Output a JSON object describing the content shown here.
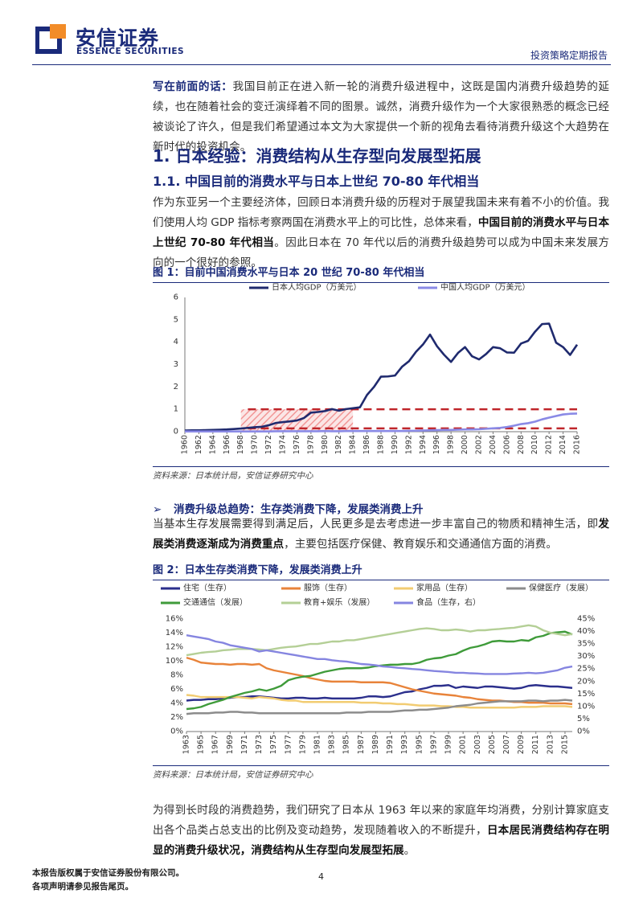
{
  "header": {
    "company_cn": "安信证券",
    "company_en": "ESSENCE SECURITIES",
    "report_type": "投资策略定期报告"
  },
  "intro": {
    "lead": "写在前面的话：",
    "text": "我国目前正在进入新一轮的消费升级进程中，这既是国内消费升级趋势的延续，也在随着社会的变迁演绎着不同的图景。诚然，消费升级作为一个大家很熟悉的概念已经被谈论了许久，但是我们希望通过本文为大家提供一个新的视角去看待消费升级这个大趋势在新时代的投资机会。"
  },
  "section1": {
    "title": "1. 日本经验：消费结构从生存型向发展型拓展",
    "sub_title": "1.1. 中国目前的消费水平与日本上世纪 70-80 年代相当",
    "para_a": "作为东亚另一个主要经济体，回顾日本消费升级的历程对于展望我国未来有着不小的价值。我们使用人均 GDP 指标考察两国在消费水平上的可比性，总体来看，",
    "para_bold": "中国目前的消费水平与日本上世纪 70-80 年代相当",
    "para_b": "。因此日本在 70 年代以后的消费升级趋势可以成为中国未来发展方向的一个很好的参照。"
  },
  "figure1": {
    "title": "图 1：目前中国消费水平与日本 20 世纪 70-80 年代相当",
    "source": "资料来源：日本统计局，安信证券研究中心"
  },
  "bullet": {
    "arrow": "➢",
    "title": "消费升级总趋势：生存类消费下降，发展类消费上升"
  },
  "para2": {
    "a": "当基本生存发展需要得到满足后，人民更多是去考虑进一步丰富自己的物质和精神生活，即",
    "bold": "发展类消费逐渐成为消费重点",
    "b": "，主要包括医疗保健、教育娱乐和交通通信方面的消费。"
  },
  "figure2": {
    "title": "图 2：日本生存类消费下降，发展类消费上升",
    "source": "资料来源：日本统计局，安信证券研究中心"
  },
  "para3": {
    "a": "为得到长时段的消费趋势，我们研究了日本从 1963 年以来的家庭年均消费，分别计算家庭支出各个品类占总支出的比例及变动趋势，发现随着收入的不断提升，",
    "bold": "日本居民消费结构存在明显的消费升级状况，消费结构从生存型向发展型拓展",
    "b": "。"
  },
  "footer": {
    "line1": "本报告版权属于安信证券股份有限公司。",
    "line2": "各项声明请参见报告尾页。",
    "page": "4"
  },
  "chart_data": [
    {
      "type": "line",
      "x": [
        1960,
        1961,
        1962,
        1963,
        1964,
        1965,
        1966,
        1967,
        1968,
        1969,
        1970,
        1971,
        1972,
        1973,
        1974,
        1975,
        1976,
        1977,
        1978,
        1979,
        1980,
        1981,
        1982,
        1983,
        1984,
        1985,
        1986,
        1987,
        1988,
        1989,
        1990,
        1991,
        1992,
        1993,
        1994,
        1995,
        1996,
        1997,
        1998,
        1999,
        2000,
        2001,
        2002,
        2003,
        2004,
        2005,
        2006,
        2007,
        2008,
        2009,
        2010,
        2011,
        2012,
        2013,
        2014,
        2015,
        2016
      ],
      "x_ticks": [
        "1960",
        "1962",
        "1964",
        "1966",
        "1968",
        "1970",
        "1972",
        "1974",
        "1976",
        "1978",
        "1980",
        "1982",
        "1984",
        "1986",
        "1988",
        "1990",
        "1992",
        "1994",
        "1996",
        "1998",
        "2000",
        "2002",
        "2004",
        "2006",
        "2008",
        "2010",
        "2012",
        "2014",
        "2016"
      ],
      "series": [
        {
          "name": "日本人均GDP（万美元）",
          "color": "#1f2a6e",
          "values": [
            0.05,
            0.06,
            0.06,
            0.07,
            0.08,
            0.09,
            0.1,
            0.12,
            0.14,
            0.17,
            0.2,
            0.22,
            0.29,
            0.39,
            0.43,
            0.46,
            0.5,
            0.61,
            0.85,
            0.88,
            0.92,
            1.01,
            0.94,
            1.01,
            1.05,
            1.09,
            1.64,
            2.0,
            2.46,
            2.47,
            2.51,
            2.9,
            3.15,
            3.57,
            3.9,
            4.34,
            3.82,
            3.44,
            3.12,
            3.52,
            3.78,
            3.37,
            3.23,
            3.47,
            3.78,
            3.73,
            3.54,
            3.53,
            3.94,
            4.06,
            4.47,
            4.81,
            4.83,
            3.98,
            3.78,
            3.43,
            3.89
          ]
        },
        {
          "name": "中国人均GDP（万美元）",
          "color": "#8a8ae6",
          "values": [
            0.01,
            0.01,
            0.01,
            0.01,
            0.01,
            0.01,
            0.01,
            0.01,
            0.01,
            0.01,
            0.01,
            0.01,
            0.01,
            0.02,
            0.02,
            0.02,
            0.02,
            0.02,
            0.02,
            0.02,
            0.03,
            0.02,
            0.02,
            0.03,
            0.03,
            0.03,
            0.03,
            0.03,
            0.03,
            0.03,
            0.03,
            0.03,
            0.04,
            0.04,
            0.05,
            0.06,
            0.07,
            0.08,
            0.08,
            0.09,
            0.1,
            0.1,
            0.11,
            0.13,
            0.15,
            0.17,
            0.21,
            0.27,
            0.34,
            0.38,
            0.45,
            0.55,
            0.63,
            0.7,
            0.77,
            0.8,
            0.81
          ]
        }
      ],
      "reference_lines": [
        1.0,
        0.15
      ],
      "highlight_range": [
        1968,
        1984
      ],
      "ylim": [
        0,
        6
      ],
      "y_ticks": [
        "0",
        "1",
        "2",
        "3",
        "4",
        "5",
        "6"
      ],
      "legend": "top"
    },
    {
      "type": "line",
      "x": [
        1963,
        1964,
        1965,
        1966,
        1967,
        1968,
        1969,
        1970,
        1971,
        1972,
        1973,
        1974,
        1975,
        1976,
        1977,
        1978,
        1979,
        1980,
        1981,
        1982,
        1983,
        1984,
        1985,
        1986,
        1987,
        1988,
        1989,
        1990,
        1991,
        1992,
        1993,
        1994,
        1995,
        1996,
        1997,
        1998,
        1999,
        2000,
        2001,
        2002,
        2003,
        2004,
        2005,
        2006,
        2007,
        2008,
        2009,
        2010,
        2011,
        2012,
        2013,
        2014,
        2015,
        2016
      ],
      "x_ticks": [
        "1963",
        "1965",
        "1967",
        "1969",
        "1971",
        "1973",
        "1975",
        "1977",
        "1979",
        "1981",
        "1983",
        "1985",
        "1987",
        "1989",
        "1991",
        "1993",
        "1995",
        "1997",
        "1999",
        "2001",
        "2003",
        "2005",
        "2007",
        "2009",
        "2011",
        "2013",
        "2015"
      ],
      "y_ticks_left": [
        "0%",
        "2%",
        "4%",
        "6%",
        "8%",
        "10%",
        "12%",
        "14%",
        "16%"
      ],
      "y_ticks_right": [
        "0%",
        "5%",
        "10%",
        "15%",
        "20%",
        "25%",
        "30%",
        "35%",
        "40%",
        "45%"
      ],
      "ylim_left": [
        0,
        16
      ],
      "ylim_right": [
        0,
        45
      ],
      "legend": "top",
      "series": [
        {
          "name": "住宅（生存）",
          "color": "#2b2f8c",
          "axis": "left",
          "values": [
            4.4,
            4.5,
            4.5,
            4.6,
            4.6,
            4.7,
            4.8,
            4.9,
            4.9,
            5.0,
            5.0,
            4.9,
            4.8,
            4.7,
            4.7,
            4.8,
            4.8,
            4.7,
            4.7,
            4.8,
            4.7,
            4.7,
            4.7,
            4.7,
            4.8,
            5.0,
            5.0,
            4.9,
            5.0,
            5.3,
            5.6,
            5.7,
            6.0,
            6.2,
            6.5,
            6.5,
            6.6,
            6.2,
            6.4,
            6.3,
            6.2,
            6.4,
            6.4,
            6.3,
            6.2,
            6.1,
            6.2,
            6.5,
            6.6,
            6.5,
            6.4,
            6.4,
            6.3,
            6.2
          ]
        },
        {
          "name": "服饰（生存）",
          "color": "#e8833a",
          "axis": "left",
          "values": [
            10.5,
            10.2,
            9.8,
            9.7,
            9.6,
            9.6,
            9.5,
            9.6,
            9.6,
            9.5,
            9.6,
            9.0,
            8.7,
            8.5,
            8.3,
            8.1,
            7.9,
            7.6,
            7.4,
            7.2,
            7.1,
            7.1,
            7.1,
            7.1,
            7.0,
            7.0,
            7.0,
            7.0,
            6.9,
            6.6,
            6.3,
            6.0,
            5.8,
            5.6,
            5.4,
            5.3,
            5.2,
            5.1,
            4.9,
            4.8,
            4.6,
            4.5,
            4.4,
            4.4,
            4.3,
            4.2,
            4.2,
            4.1,
            4.1,
            4.1,
            4.0,
            4.0,
            4.0,
            3.9
          ]
        },
        {
          "name": "家用品（生存）",
          "color": "#f2cc72",
          "axis": "left",
          "values": [
            5.2,
            5.1,
            4.9,
            4.9,
            4.9,
            4.9,
            4.9,
            4.9,
            4.8,
            4.7,
            4.9,
            4.8,
            4.7,
            4.5,
            4.4,
            4.4,
            4.2,
            4.2,
            4.2,
            4.2,
            4.2,
            4.2,
            4.2,
            4.2,
            4.1,
            4.1,
            4.1,
            4.0,
            4.0,
            3.9,
            3.9,
            3.8,
            3.7,
            3.7,
            3.7,
            3.6,
            3.6,
            3.5,
            3.5,
            3.4,
            3.4,
            3.4,
            3.4,
            3.4,
            3.4,
            3.4,
            3.5,
            3.5,
            3.5,
            3.6,
            3.6,
            3.6,
            3.6,
            3.5
          ]
        },
        {
          "name": "保健医疗（发展）",
          "color": "#8c8c8c",
          "axis": "left",
          "values": [
            2.5,
            2.6,
            2.6,
            2.6,
            2.7,
            2.7,
            2.8,
            2.8,
            2.7,
            2.7,
            2.6,
            2.6,
            2.6,
            2.6,
            2.6,
            2.6,
            2.6,
            2.6,
            2.6,
            2.6,
            2.6,
            2.6,
            2.7,
            2.7,
            2.7,
            2.8,
            2.8,
            2.8,
            2.8,
            2.9,
            3.0,
            3.0,
            3.1,
            3.1,
            3.2,
            3.3,
            3.4,
            3.6,
            3.7,
            3.8,
            4.0,
            4.1,
            4.2,
            4.3,
            4.3,
            4.3,
            4.3,
            4.4,
            4.4,
            4.3,
            4.4,
            4.4,
            4.5,
            4.4
          ]
        },
        {
          "name": "交通通信（发展）",
          "color": "#3f9b3a",
          "axis": "left",
          "values": [
            3.2,
            3.3,
            3.5,
            3.9,
            4.2,
            4.5,
            4.9,
            5.2,
            5.5,
            5.7,
            6.0,
            5.8,
            6.1,
            6.5,
            7.3,
            7.6,
            7.8,
            7.9,
            8.2,
            8.5,
            8.7,
            8.9,
            9.0,
            9.0,
            9.0,
            9.1,
            9.3,
            9.4,
            9.5,
            9.5,
            9.6,
            9.6,
            9.8,
            10.2,
            10.4,
            10.5,
            10.8,
            11.0,
            11.5,
            11.9,
            12.1,
            12.4,
            12.8,
            12.9,
            12.8,
            12.8,
            13.0,
            12.9,
            13.4,
            13.6,
            14.0,
            14.1,
            14.2,
            13.8
          ]
        },
        {
          "name": "教育+娱乐（发展）",
          "color": "#b4cf96",
          "axis": "right",
          "values": [
            30.5,
            31.0,
            31.5,
            31.8,
            32.0,
            32.5,
            32.7,
            33.0,
            33.0,
            33.0,
            32.8,
            32.5,
            33.0,
            33.5,
            33.8,
            34.0,
            34.5,
            35.0,
            35.0,
            35.5,
            36.0,
            36.0,
            36.5,
            36.5,
            37.0,
            37.5,
            38.0,
            38.5,
            39.0,
            39.5,
            40.0,
            40.5,
            41.0,
            41.3,
            41.0,
            40.5,
            40.5,
            40.8,
            40.5,
            40.0,
            40.5,
            40.5,
            40.8,
            41.0,
            41.3,
            41.5,
            42.0,
            42.5,
            42.0,
            40.5,
            39.5,
            39.0,
            38.5,
            39.0
          ]
        },
        {
          "name": "食品（生存，右）",
          "color": "#8585e0",
          "axis": "right",
          "values": [
            38.5,
            38.0,
            37.5,
            37.0,
            36.0,
            35.5,
            34.5,
            34.0,
            33.5,
            33.0,
            32.0,
            32.5,
            32.0,
            31.5,
            31.0,
            30.5,
            30.0,
            29.5,
            29.0,
            29.0,
            28.5,
            28.2,
            28.0,
            27.5,
            27.0,
            26.8,
            26.5,
            26.0,
            25.8,
            25.5,
            25.3,
            25.0,
            24.8,
            24.5,
            24.2,
            24.0,
            23.8,
            23.5,
            23.5,
            23.3,
            23.2,
            23.0,
            23.0,
            23.0,
            23.0,
            23.2,
            23.3,
            23.5,
            23.3,
            23.5,
            24.0,
            24.5,
            25.5,
            26.0
          ]
        }
      ]
    }
  ]
}
